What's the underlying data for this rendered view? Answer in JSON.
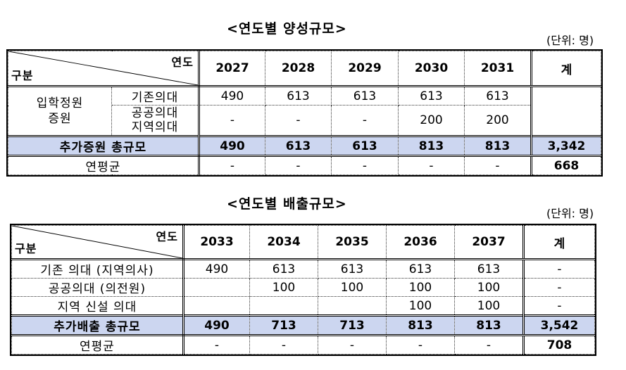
{
  "table1": {
    "title": "<연도별 양성규모>",
    "unit": "(단위: 명)",
    "header_year_label": "연도",
    "header_category_label": "구분",
    "years": [
      "2027",
      "2028",
      "2029",
      "2030",
      "2031"
    ],
    "total_header": "계",
    "group_label": "입학정원\n증원",
    "group_label_1": "입학정원",
    "group_label_2": "증원",
    "rows": [
      {
        "label": "기존의대",
        "values": [
          "490",
          "613",
          "613",
          "613",
          "613"
        ],
        "total": ""
      },
      {
        "label_1": "공공의대",
        "label_2": "지역의대",
        "values": [
          "-",
          "-",
          "-",
          "200",
          "200"
        ],
        "total": ""
      }
    ],
    "sum_row": {
      "label": "추가증원 총규모",
      "values": [
        "490",
        "613",
        "613",
        "813",
        "813"
      ],
      "total": "3,342"
    },
    "avg_row": {
      "label": "연평균",
      "values": [
        "-",
        "-",
        "-",
        "-",
        "-"
      ],
      "total": "668"
    }
  },
  "table2": {
    "title": "<연도별 배출규모>",
    "unit": "(단위: 명)",
    "header_year_label": "연도",
    "header_category_label": "구분",
    "years": [
      "2033",
      "2034",
      "2035",
      "2036",
      "2037"
    ],
    "total_header": "계",
    "rows": [
      {
        "label": "기존 의대 (지역의사)",
        "values": [
          "490",
          "613",
          "613",
          "613",
          "613"
        ],
        "total": "-"
      },
      {
        "label": "공공의대 (의전원)",
        "values": [
          "",
          "100",
          "100",
          "100",
          "100"
        ],
        "total": "-"
      },
      {
        "label": "지역 신설 의대",
        "values": [
          "",
          "",
          "",
          "100",
          "100"
        ],
        "total": "-"
      }
    ],
    "sum_row": {
      "label": "추가배출 총규모",
      "values": [
        "490",
        "713",
        "713",
        "813",
        "813"
      ],
      "total": "3,542"
    },
    "avg_row": {
      "label": "연평균",
      "values": [
        "-",
        "-",
        "-",
        "-",
        "-"
      ],
      "total": "708"
    }
  }
}
